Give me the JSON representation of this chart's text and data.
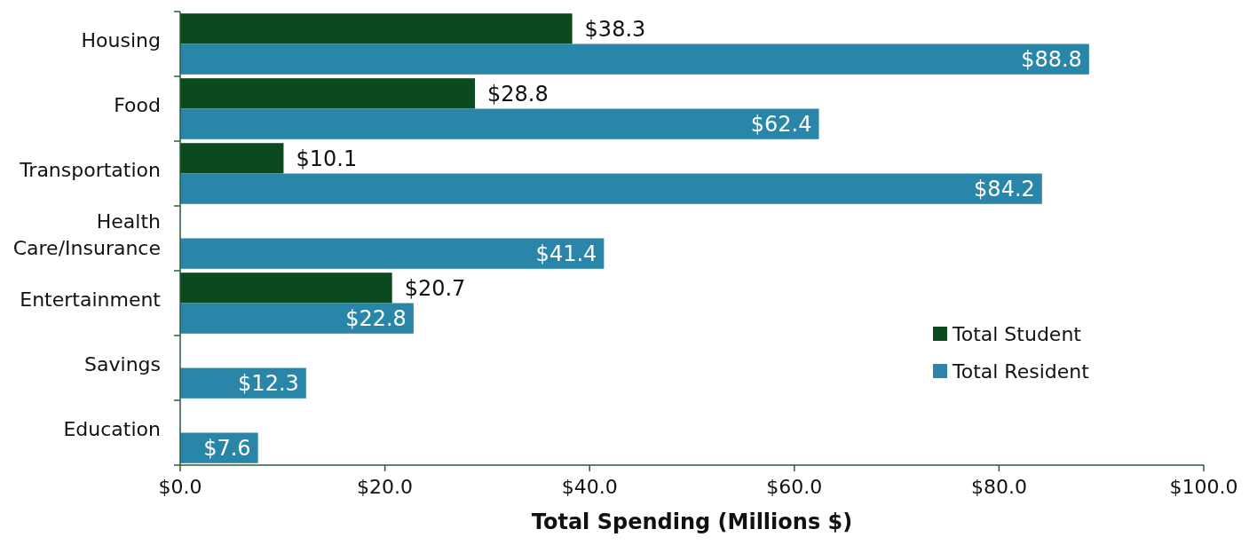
{
  "chart_data": {
    "type": "bar",
    "orientation": "horizontal",
    "xlabel": "Total Spending (Millions $)",
    "categories": [
      "Housing",
      "Food",
      "Transportation",
      "Health Care/Insurance",
      "Entertainment",
      "Savings",
      "Education"
    ],
    "series": [
      {
        "name": "Total Student",
        "color": "#0b4a1f",
        "values": [
          38.3,
          28.8,
          10.1,
          null,
          20.7,
          null,
          null
        ],
        "value_labels": [
          "$38.3",
          "$28.8",
          "$10.1",
          null,
          "$20.7",
          null,
          null
        ]
      },
      {
        "name": "Total Resident",
        "color": "#2a86a8",
        "values": [
          88.8,
          62.4,
          84.2,
          41.4,
          22.8,
          12.3,
          7.6
        ],
        "value_labels": [
          "$88.8",
          "$62.4",
          "$84.2",
          "$41.4",
          "$22.8",
          "$12.3",
          "$7.6"
        ]
      }
    ],
    "xlim": [
      0,
      100
    ],
    "xticks": [
      {
        "value": 0,
        "label": "$0.0"
      },
      {
        "value": 20,
        "label": "$20.0"
      },
      {
        "value": 40,
        "label": "$40.0"
      },
      {
        "value": 60,
        "label": "$60.0"
      },
      {
        "value": 80,
        "label": "$80.0"
      },
      {
        "value": 100,
        "label": "$100.0"
      }
    ],
    "legend": "right"
  }
}
